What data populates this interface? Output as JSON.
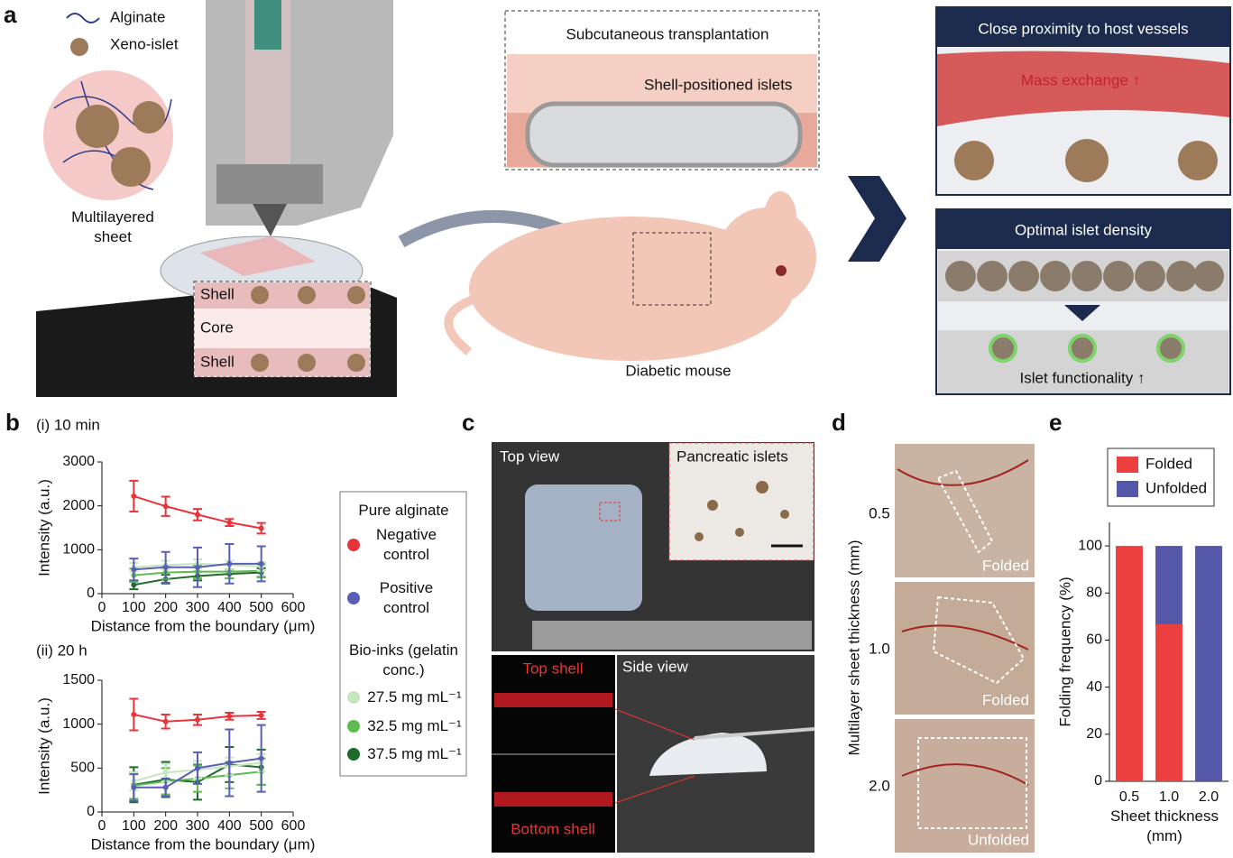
{
  "panel_a": {
    "label": "a",
    "legend": [
      "Alginate",
      "Xeno-islet"
    ],
    "sheet_label": "Multilayered sheet",
    "layers": [
      "Shell",
      "Core",
      "Shell"
    ],
    "inset_title": "Subcutaneous transplantation",
    "inset_label": "Shell-positioned islets",
    "mouse_label": "Diabetic mouse",
    "box1_title": "Close proximity to host vessels",
    "box1_label": "Mass exchange ↑",
    "box2_title": "Optimal islet density",
    "box2_label": "Islet functionality ↑"
  },
  "panel_c": {
    "label": "c",
    "top_view": "Top view",
    "inset": "Pancreatic islets",
    "top_shell": "Top shell",
    "bottom_shell": "Bottom shell",
    "side_view": "Side view"
  },
  "panel_d": {
    "label": "d",
    "ylabel": "Multilayer sheet thickness (mm)",
    "rows": [
      {
        "thickness": "0.5",
        "state": "Folded"
      },
      {
        "thickness": "1.0",
        "state": "Folded"
      },
      {
        "thickness": "2.0",
        "state": "Unfolded"
      }
    ]
  },
  "chart_data": [
    {
      "type": "line",
      "panel": "b",
      "title": "(i) 10 min",
      "x": [
        100,
        200,
        300,
        400,
        500
      ],
      "xlim": [
        0,
        600
      ],
      "xticks": [
        0,
        100,
        200,
        300,
        400,
        500,
        600
      ],
      "ylim": [
        0,
        3000
      ],
      "yticks": [
        0,
        1000,
        2000,
        3000
      ],
      "xlabel": "Distance from the boundary (μm)",
      "ylabel": "Intensity (a.u.)",
      "legend_titles": [
        "Pure alginate",
        "Bio-inks (gelatin conc.)"
      ],
      "series": [
        {
          "name": "Negative control",
          "color": "#e8343b",
          "values": [
            2220,
            1990,
            1800,
            1620,
            1490
          ],
          "errors": [
            350,
            220,
            130,
            80,
            120
          ]
        },
        {
          "name": "Positive control",
          "color": "#5a5fb4",
          "values": [
            550,
            600,
            600,
            680,
            680
          ],
          "errors": [
            250,
            350,
            450,
            450,
            400
          ]
        },
        {
          "name": "27.5 mg mL⁻¹",
          "color": "#c6e6c0",
          "values": [
            600,
            650,
            680,
            650,
            620
          ],
          "errors": [
            100,
            100,
            100,
            100,
            100
          ]
        },
        {
          "name": "32.5 mg mL⁻¹",
          "color": "#5dbb4f",
          "values": [
            420,
            480,
            500,
            500,
            520
          ],
          "errors": [
            150,
            150,
            150,
            150,
            150
          ]
        },
        {
          "name": "37.5 mg mL⁻¹",
          "color": "#1f6b2c",
          "values": [
            200,
            330,
            400,
            450,
            480
          ],
          "errors": [
            100,
            100,
            100,
            100,
            100
          ]
        }
      ]
    },
    {
      "type": "line",
      "title": "(ii) 20 h",
      "x": [
        100,
        200,
        300,
        400,
        500
      ],
      "xlim": [
        0,
        600
      ],
      "xticks": [
        0,
        100,
        200,
        300,
        400,
        500,
        600
      ],
      "ylim": [
        0,
        1500
      ],
      "yticks": [
        0,
        500,
        1000,
        1500
      ],
      "xlabel": "Distance from the boundary (μm)",
      "ylabel": "Intensity (a.u.)",
      "series": [
        {
          "color": "#e8343b",
          "values": [
            1110,
            1030,
            1050,
            1090,
            1100
          ],
          "errors": [
            180,
            80,
            60,
            40,
            40
          ]
        },
        {
          "color": "#5a5fb4",
          "values": [
            280,
            280,
            500,
            560,
            610
          ],
          "errors": [
            150,
            100,
            180,
            380,
            380
          ]
        },
        {
          "color": "#c6e6c0",
          "values": [
            350,
            450,
            480,
            520,
            560
          ],
          "errors": [
            100,
            100,
            100,
            100,
            100
          ]
        },
        {
          "color": "#5dbb4f",
          "values": [
            300,
            350,
            380,
            420,
            460
          ],
          "errors": [
            150,
            150,
            150,
            150,
            150
          ]
        },
        {
          "color": "#1f6b2c",
          "values": [
            310,
            370,
            340,
            540,
            510
          ],
          "errors": [
            200,
            200,
            200,
            200,
            200
          ]
        }
      ]
    },
    {
      "type": "bar",
      "stacked": true,
      "panel": "e",
      "categories": [
        "0.5",
        "1.0",
        "2.0"
      ],
      "ylim": [
        0,
        110
      ],
      "yticks": [
        0,
        20,
        40,
        60,
        80,
        100
      ],
      "xlabel": "Sheet thickness (mm)",
      "ylabel": "Folding frequency (%)",
      "series": [
        {
          "name": "Folded",
          "color": "#ec4040",
          "values": [
            100,
            66.7,
            0
          ]
        },
        {
          "name": "Unfolded",
          "color": "#5558a8",
          "values": [
            0,
            33.3,
            100
          ]
        }
      ]
    }
  ]
}
